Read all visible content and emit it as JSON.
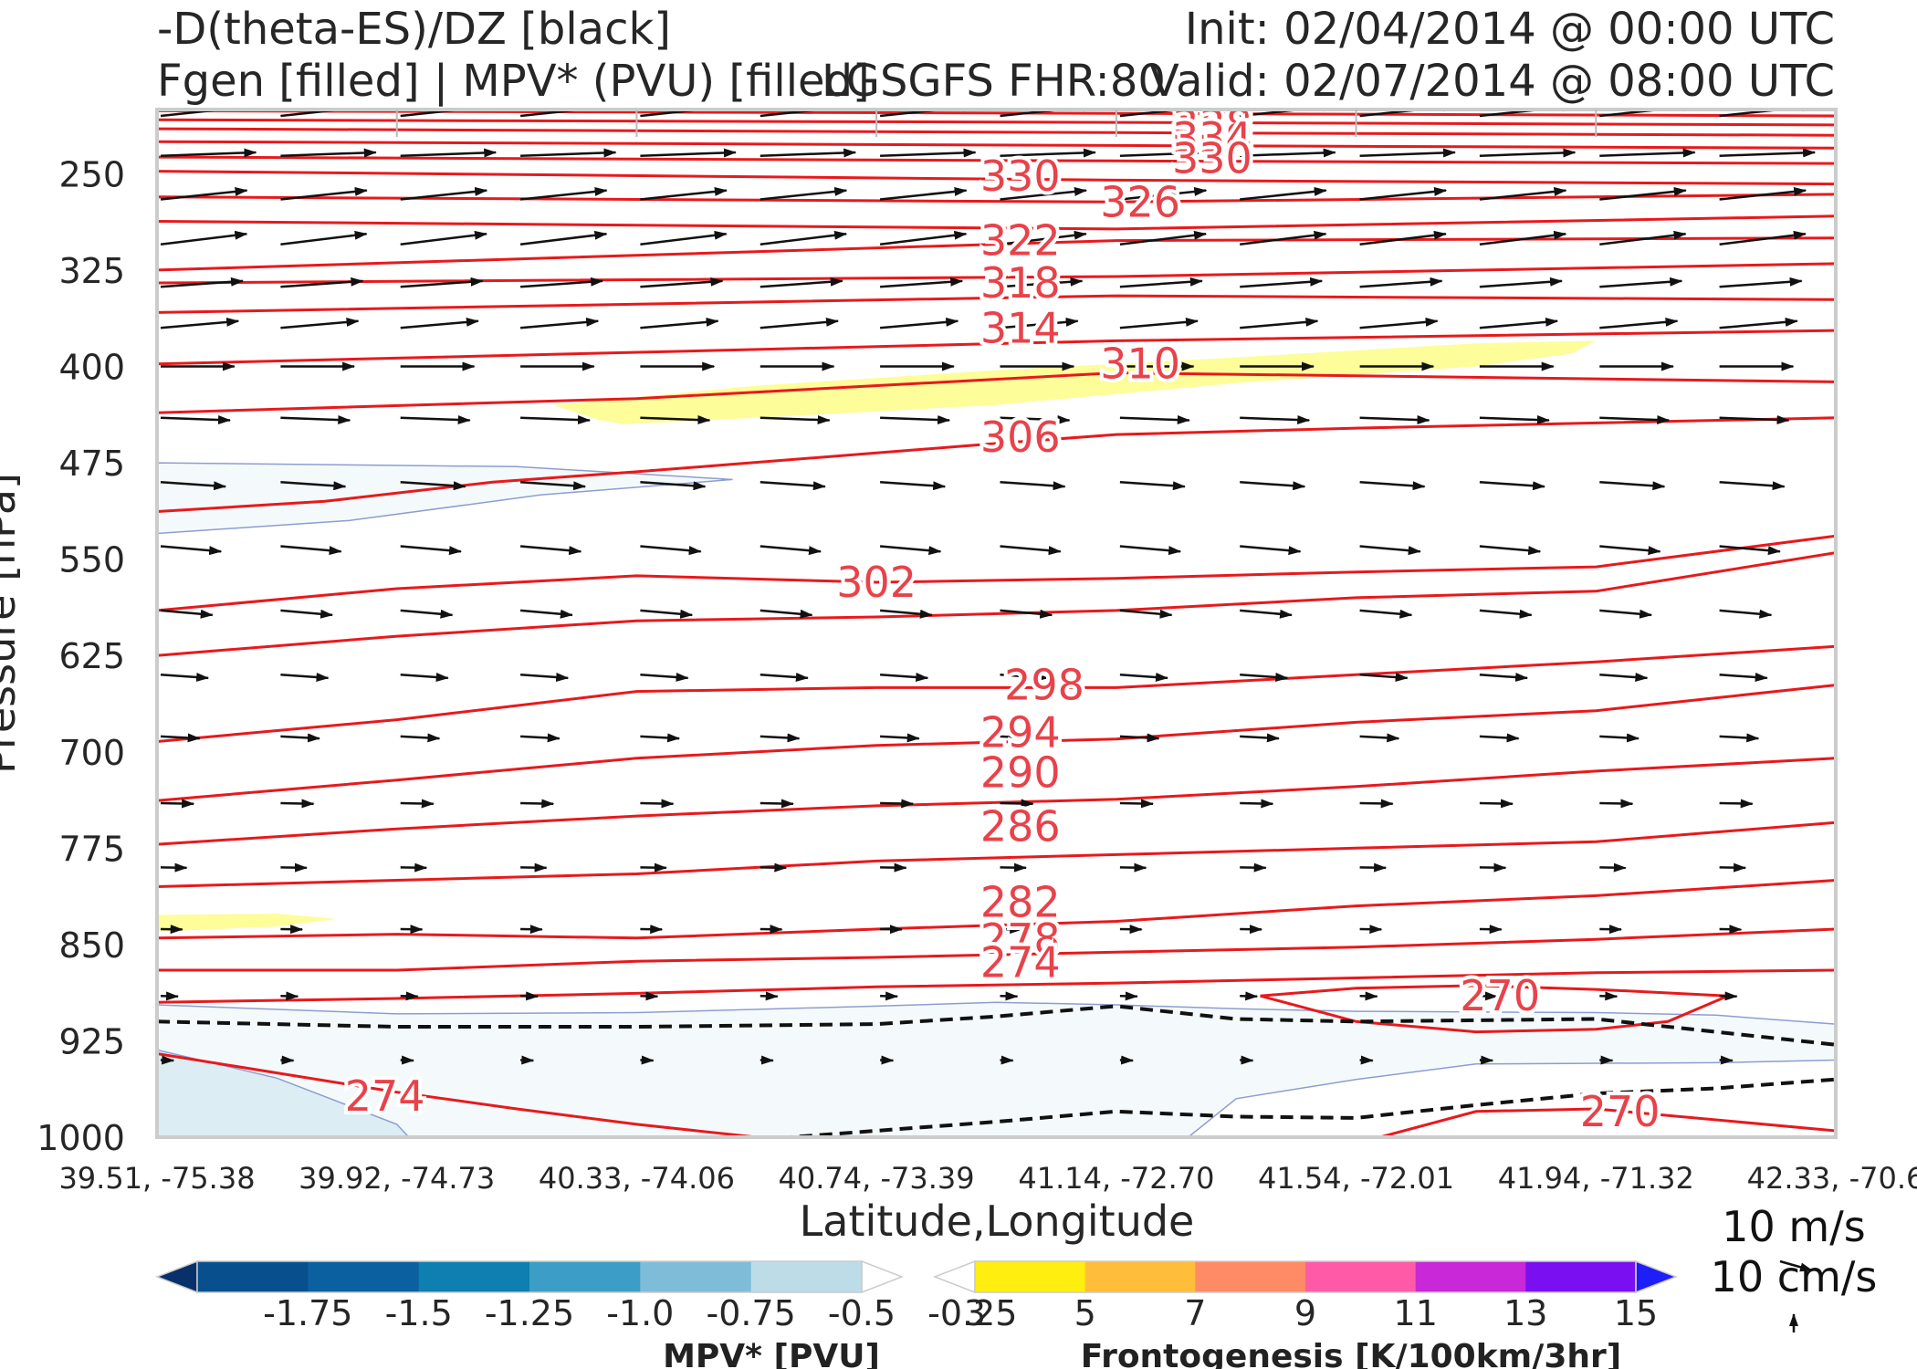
{
  "header": {
    "title_left_1": "-D(theta-ES)/DZ [black]",
    "title_left_2": "Fgen [filled] | MPV* (PVU) [filled]",
    "title_center": "LGSGFS FHR:80",
    "title_right_1": "Init: 02/04/2014 @ 00:00 UTC",
    "title_right_2": "Valid: 02/07/2014 @ 08:00 UTC"
  },
  "chart_data": {
    "type": "cross-section",
    "xlabel": "Latitude,Longitude",
    "ylabel": "Pressure [hPa]",
    "x_ticks": [
      "39.51, -75.38",
      "39.92, -74.73",
      "40.33, -74.06",
      "40.74, -73.39",
      "41.14, -72.70",
      "41.54, -72.01",
      "41.94, -71.32",
      "42.33, -70.6"
    ],
    "y_ticks": [
      250,
      325,
      400,
      475,
      550,
      625,
      700,
      775,
      850,
      925,
      1000
    ],
    "ylim": [
      1000,
      200
    ],
    "theta_labels": [
      {
        "value": "340",
        "x": 4.4,
        "p": 207
      },
      {
        "value": "338",
        "x": 4.4,
        "p": 212
      },
      {
        "value": "334",
        "x": 4.4,
        "p": 222
      },
      {
        "value": "330",
        "x": 4.4,
        "p": 238
      },
      {
        "value": "330",
        "x": 3.6,
        "p": 252
      },
      {
        "value": "326",
        "x": 4.1,
        "p": 272
      },
      {
        "value": "322",
        "x": 3.6,
        "p": 302
      },
      {
        "value": "318",
        "x": 3.6,
        "p": 335
      },
      {
        "value": "314",
        "x": 3.6,
        "p": 370
      },
      {
        "value": "310",
        "x": 4.1,
        "p": 398
      },
      {
        "value": "306",
        "x": 3.6,
        "p": 455
      },
      {
        "value": "302",
        "x": 3.0,
        "p": 568
      },
      {
        "value": "298",
        "x": 3.7,
        "p": 648
      },
      {
        "value": "294",
        "x": 3.6,
        "p": 685
      },
      {
        "value": "290",
        "x": 3.6,
        "p": 716
      },
      {
        "value": "286",
        "x": 3.6,
        "p": 758
      },
      {
        "value": "282",
        "x": 3.6,
        "p": 817
      },
      {
        "value": "278",
        "x": 3.6,
        "p": 846
      },
      {
        "value": "274",
        "x": 3.6,
        "p": 864
      },
      {
        "value": "270",
        "x": 5.6,
        "p": 890
      },
      {
        "value": "274",
        "x": 0.95,
        "p": 968
      },
      {
        "value": "270",
        "x": 6.1,
        "p": 980
      }
    ],
    "legend_mpv": {
      "title": "MPV* [PVU]",
      "tick_labels": [
        "-1.75",
        "-1.5",
        "-1.25",
        "-1.0",
        "-0.75",
        "-0.5",
        "-0.25"
      ],
      "colors": [
        "#08306b",
        "#084f8e",
        "#0b60a0",
        "#0e7fb0",
        "#3c9ec6",
        "#7fbcd8",
        "#bcdce8",
        "#ffffff"
      ]
    },
    "legend_fgen": {
      "title": "Frontogenesis [K/100km/3hr]",
      "tick_labels": [
        "3",
        "5",
        "7",
        "9",
        "11",
        "13",
        "15"
      ],
      "colors": [
        "#ffffff",
        "#ffee10",
        "#ffbe3a",
        "#ff8a66",
        "#ff5aa8",
        "#c828d8",
        "#7a10f2",
        "#1e1ef8"
      ]
    },
    "vector_keys": [
      "10 m/s",
      "10 cm/s"
    ],
    "colors": {
      "theta": "#e8191c",
      "theta_label": "#e8424a",
      "wind": "#111111",
      "mpv_fill": "#f4fafb",
      "fgen_fill": "#fdfd9a"
    }
  }
}
